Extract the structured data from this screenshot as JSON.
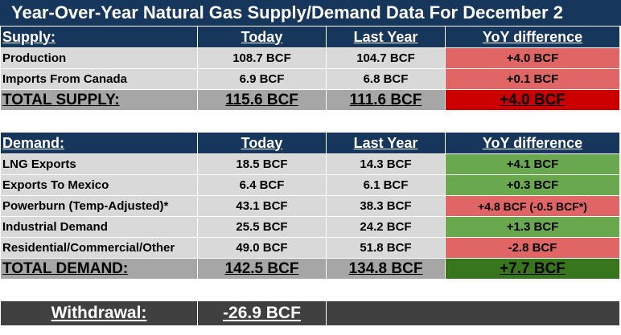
{
  "title": "Year-Over-Year Natural Gas Supply/Demand Data For December 2",
  "supply": {
    "header": {
      "label": "Supply:",
      "today": "Today",
      "last_year": "Last Year",
      "diff": "YoY difference"
    },
    "rows": [
      {
        "label": "Production",
        "today": "108.7 BCF",
        "last_year": "104.7 BCF",
        "diff": "+4.0 BCF"
      },
      {
        "label": "Imports From Canada",
        "today": "6.9 BCF",
        "last_year": "6.8 BCF",
        "diff": "+0.1 BCF"
      }
    ],
    "total": {
      "label": "TOTAL SUPPLY:",
      "today": "115.6 BCF",
      "last_year": "111.6 BCF",
      "diff": "+4.0 BCF"
    }
  },
  "demand": {
    "header": {
      "label": "Demand:",
      "today": "Today",
      "last_year": "Last Year",
      "diff": "YoY difference"
    },
    "rows": [
      {
        "label": "LNG Exports",
        "today": "18.5 BCF",
        "last_year": "14.3 BCF",
        "diff": "+4.1 BCF"
      },
      {
        "label": "Exports To Mexico",
        "today": "6.4 BCF",
        "last_year": "6.1 BCF",
        "diff": "+0.3 BCF"
      },
      {
        "label": "Powerburn (Temp-Adjusted)*",
        "today": "43.1 BCF",
        "last_year": "38.3 BCF",
        "diff": "+4.8 BCF (-0.5 BCF*)"
      },
      {
        "label": "Industrial Demand",
        "today": "25.5 BCF",
        "last_year": "24.2 BCF",
        "diff": "+1.3 BCF"
      },
      {
        "label": "Residential/Commercial/Other",
        "today": "49.0 BCF",
        "last_year": "51.8 BCF",
        "diff": "-2.8 BCF"
      }
    ],
    "total": {
      "label": "TOTAL DEMAND:",
      "today": "142.5 BCF",
      "last_year": "134.8 BCF",
      "diff": "+7.7 BCF"
    }
  },
  "withdrawal": {
    "label": "Withdrawal:",
    "value": "-26.9 BCF"
  },
  "colors": {
    "header_bg": "#16365c",
    "row_bg": "#d9d9d9",
    "total_bg": "#a6a6a6",
    "negative_light": "#e06666",
    "negative_dark": "#cc0000",
    "positive_light": "#6aa84f",
    "positive_dark": "#38761d",
    "withdrawal_bg": "#404040"
  }
}
